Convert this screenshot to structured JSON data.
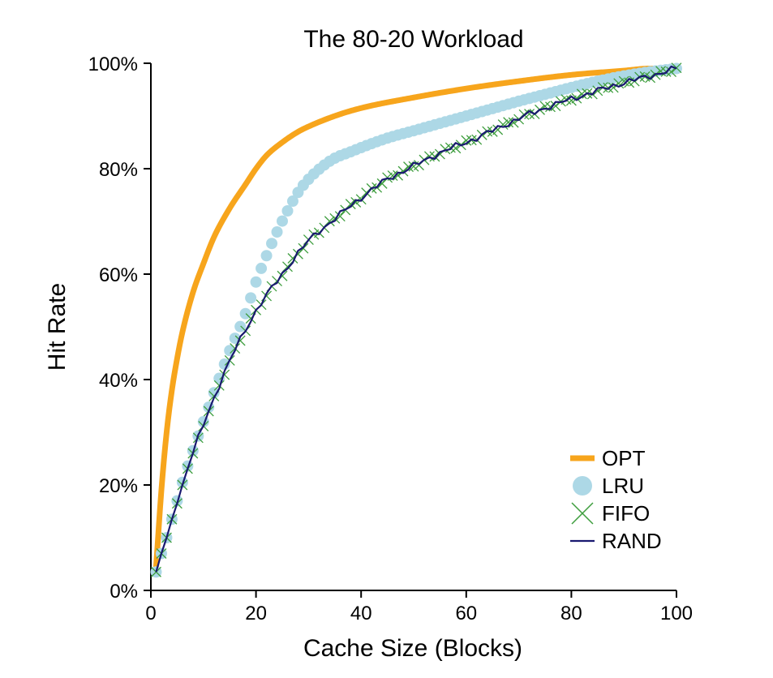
{
  "chart_data": {
    "type": "line",
    "title": "The 80-20 Workload",
    "xlabel": "Cache Size (Blocks)",
    "ylabel": "Hit Rate",
    "xlim": [
      0,
      100
    ],
    "ylim": [
      0,
      100
    ],
    "x_ticks": [
      0,
      20,
      40,
      60,
      80,
      100
    ],
    "x_tick_labels": [
      "0",
      "20",
      "40",
      "60",
      "80",
      "100"
    ],
    "y_ticks": [
      0,
      20,
      40,
      60,
      80,
      100
    ],
    "y_tick_labels": [
      "0%",
      "20%",
      "40%",
      "60%",
      "80%",
      "100%"
    ],
    "grid": false,
    "legend_position": "bottom-right",
    "series": [
      {
        "name": "OPT",
        "style": "line",
        "color": "#f7a51c",
        "x": [
          1,
          2,
          3,
          4,
          5,
          6,
          8,
          10,
          12,
          15,
          18,
          20,
          22,
          25,
          28,
          30,
          35,
          40,
          50,
          60,
          70,
          80,
          90,
          95,
          100
        ],
        "y": [
          4.5,
          19,
          30,
          38,
          44,
          49,
          56.5,
          62,
          67,
          72.5,
          77,
          80,
          82.5,
          85,
          87,
          88,
          90,
          91.5,
          93.5,
          95.2,
          96.6,
          97.8,
          98.6,
          99,
          99
        ]
      },
      {
        "name": "LRU",
        "style": "marker",
        "color": "#add8e6",
        "x": [
          1,
          2,
          3,
          4,
          5,
          6,
          8,
          10,
          12,
          15,
          18,
          20,
          22,
          24,
          26,
          28,
          30,
          33,
          35,
          38,
          40,
          45,
          50,
          55,
          60,
          65,
          70,
          75,
          80,
          85,
          90,
          95,
          100
        ],
        "y": [
          3.5,
          7,
          10,
          13.5,
          17,
          20.5,
          26.5,
          32,
          37.5,
          45.5,
          52.5,
          58.5,
          63.5,
          68,
          72,
          75.5,
          78,
          80.7,
          82,
          83.2,
          84,
          85.8,
          87.2,
          88.6,
          90,
          91.4,
          92.8,
          94.1,
          95.4,
          96.6,
          97.6,
          98.4,
          99
        ]
      },
      {
        "name": "FIFO",
        "style": "marker",
        "color": "#3f9e3f",
        "x": [
          1,
          2,
          3,
          4,
          5,
          6,
          8,
          10,
          12,
          15,
          18,
          20,
          25,
          30,
          35,
          40,
          45,
          50,
          55,
          60,
          65,
          70,
          75,
          80,
          85,
          90,
          95,
          100
        ],
        "y": [
          3.5,
          7,
          10,
          13.5,
          16.5,
          20,
          26,
          31.5,
          36.5,
          43.5,
          49.5,
          53,
          60,
          66.3,
          70.5,
          74.5,
          78,
          80.5,
          83,
          85,
          87.2,
          89.5,
          91.5,
          93.2,
          94.8,
          96.3,
          97.6,
          99
        ]
      },
      {
        "name": "RAND",
        "style": "line",
        "color": "#191970",
        "x": [
          1,
          2,
          3,
          4,
          5,
          6,
          8,
          10,
          12,
          15,
          18,
          20,
          25,
          30,
          35,
          40,
          45,
          50,
          55,
          60,
          65,
          70,
          75,
          80,
          85,
          90,
          95,
          100
        ],
        "y": [
          3.5,
          7,
          10,
          13.5,
          16.5,
          20,
          26,
          31.5,
          36.5,
          43.5,
          49.5,
          53,
          60,
          66.3,
          70.5,
          74.5,
          78,
          80.5,
          83,
          85,
          87.2,
          89.5,
          91.5,
          93.2,
          94.8,
          96.3,
          97.6,
          99
        ]
      }
    ]
  }
}
